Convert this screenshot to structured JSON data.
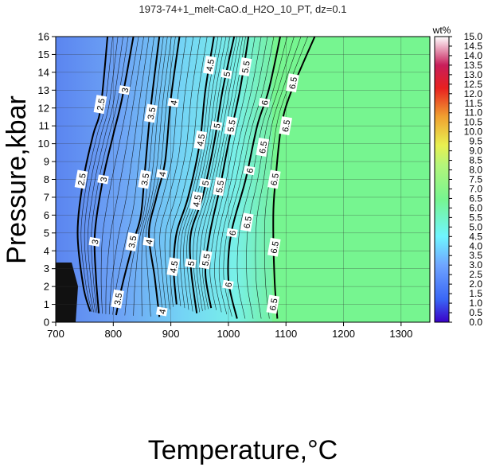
{
  "chart_data": {
    "type": "heatmap",
    "title": "1973-74+1_melt-CaO.d_H2O_10_PT, dz=0.1",
    "xlabel": "Temperature,°C",
    "ylabel": "Pressure,kbar",
    "xlim": [
      700,
      1350
    ],
    "ylim": [
      0,
      16
    ],
    "x_ticks": [
      "700",
      "800",
      "900",
      "1000",
      "1100",
      "1200",
      "1300"
    ],
    "y_ticks": [
      "0",
      "1",
      "2",
      "3",
      "4",
      "5",
      "6",
      "7",
      "8",
      "9",
      "10",
      "11",
      "12",
      "13",
      "14",
      "15",
      "16"
    ],
    "grid": true,
    "colorbar": {
      "title": "wt%",
      "min": 0,
      "max": 15,
      "ticks": [
        "0.0",
        "0.5",
        "1.0",
        "1.5",
        "2.0",
        "2.5",
        "3.0",
        "3.5",
        "4.0",
        "4.5",
        "5.0",
        "5.5",
        "6.0",
        "6.5",
        "7.0",
        "7.5",
        "8.0",
        "8.5",
        "9.0",
        "9.5",
        "10.0",
        "10.5",
        "11.0",
        "11.5",
        "12.0",
        "12.5",
        "13.0",
        "13.5",
        "14.0",
        "14.5",
        "15.0"
      ]
    },
    "regions": [
      {
        "value": 2.5,
        "color": "#6e9cf2",
        "x_start_by_p": {
          "0": 700,
          "16": 700
        }
      },
      {
        "value": 4.5,
        "color": "#7ce8f5",
        "x_start_by_p": {
          "0": 900,
          "16": 940
        }
      },
      {
        "value": 6.5,
        "color": "#76f590",
        "x_start_by_p": {
          "0": 1090,
          "16": 1150
        }
      }
    ],
    "contours": [
      {
        "level": "2.5",
        "points": [
          [
            760,
            0.6
          ],
          [
            748,
            2
          ],
          [
            738,
            5
          ],
          [
            748,
            8
          ],
          [
            765,
            10.5
          ],
          [
            778,
            12
          ],
          [
            790,
            16
          ]
        ],
        "label_at": [
          [
            745,
            8
          ],
          [
            778,
            12.2
          ]
        ]
      },
      {
        "level": "3",
        "points": [
          [
            775,
            0.5
          ],
          [
            770,
            2.5
          ],
          [
            768,
            5
          ],
          [
            782,
            8
          ],
          [
            800,
            10.5
          ],
          [
            815,
            12.5
          ],
          [
            835,
            16
          ]
        ],
        "label_at": [
          [
            768,
            4.5
          ],
          [
            783,
            8
          ],
          [
            820,
            13
          ]
        ]
      },
      {
        "level": "3.5",
        "points": [
          [
            805,
            0.4
          ],
          [
            815,
            2
          ],
          [
            835,
            4.5
          ],
          [
            848,
            6
          ],
          [
            855,
            8.5
          ],
          [
            865,
            12
          ],
          [
            880,
            16
          ]
        ],
        "label_at": [
          [
            808,
            1.3
          ],
          [
            833,
            4.5
          ],
          [
            855,
            8
          ],
          [
            866,
            11.7
          ]
        ]
      },
      {
        "level": "4",
        "points": [
          [
            880,
            0.3
          ],
          [
            872,
            2.5
          ],
          [
            862,
            5
          ],
          [
            875,
            7
          ],
          [
            890,
            9
          ],
          [
            900,
            12.5
          ],
          [
            915,
            16
          ]
        ],
        "label_at": [
          [
            885,
            0.6
          ],
          [
            862,
            4.5
          ],
          [
            885,
            8.3
          ],
          [
            905,
            12.3
          ]
        ]
      },
      {
        "level": "4.5",
        "points": [
          [
            910,
            1
          ],
          [
            905,
            3
          ],
          [
            910,
            5
          ],
          [
            930,
            7
          ],
          [
            950,
            10
          ],
          [
            960,
            13
          ],
          [
            975,
            16
          ]
        ],
        "label_at": [
          [
            905,
            3.1
          ],
          [
            945,
            6.8
          ],
          [
            952,
            10.2
          ],
          [
            968,
            14.4
          ]
        ]
      },
      {
        "level": "5",
        "points": [
          [
            945,
            0.5
          ],
          [
            935,
            3
          ],
          [
            935,
            5
          ],
          [
            955,
            7
          ],
          [
            975,
            10
          ],
          [
            990,
            13
          ],
          [
            1010,
            16
          ]
        ],
        "label_at": [
          [
            935,
            3.3
          ],
          [
            960,
            7.8
          ],
          [
            980,
            11
          ],
          [
            997,
            13.9
          ]
        ]
      },
      {
        "level": "5.5",
        "points": [
          [
            970,
            0.8
          ],
          [
            960,
            2.8
          ],
          [
            968,
            5
          ],
          [
            985,
            7.5
          ],
          [
            1000,
            10
          ],
          [
            1020,
            13
          ],
          [
            1035,
            16
          ]
        ],
        "label_at": [
          [
            961,
            3.5
          ],
          [
            985,
            7.6
          ],
          [
            1005,
            11
          ],
          [
            1030,
            14.3
          ]
        ]
      },
      {
        "level": "6",
        "points": [
          [
            1015,
            0.2
          ],
          [
            1000,
            2.4
          ],
          [
            1005,
            5
          ],
          [
            1030,
            8
          ],
          [
            1050,
            11
          ],
          [
            1070,
            13
          ],
          [
            1090,
            16
          ]
        ],
        "label_at": [
          [
            1000,
            2.1
          ],
          [
            1007,
            5
          ],
          [
            1037,
            8.5
          ],
          [
            1063,
            12.3
          ]
        ]
      },
      {
        "level": "6.5",
        "points": [
          [
            1085,
            0.2
          ],
          [
            1080,
            2.5
          ],
          [
            1078,
            6
          ],
          [
            1082,
            8
          ],
          [
            1092,
            11
          ],
          [
            1110,
            13
          ],
          [
            1150,
            16
          ]
        ],
        "label_at": [
          [
            1078,
            1
          ],
          [
            1033,
            5.6
          ],
          [
            1080,
            4.2
          ],
          [
            1080,
            8
          ],
          [
            1060,
            9.8
          ],
          [
            1100,
            11
          ],
          [
            1112,
            13.4
          ]
        ]
      }
    ]
  }
}
